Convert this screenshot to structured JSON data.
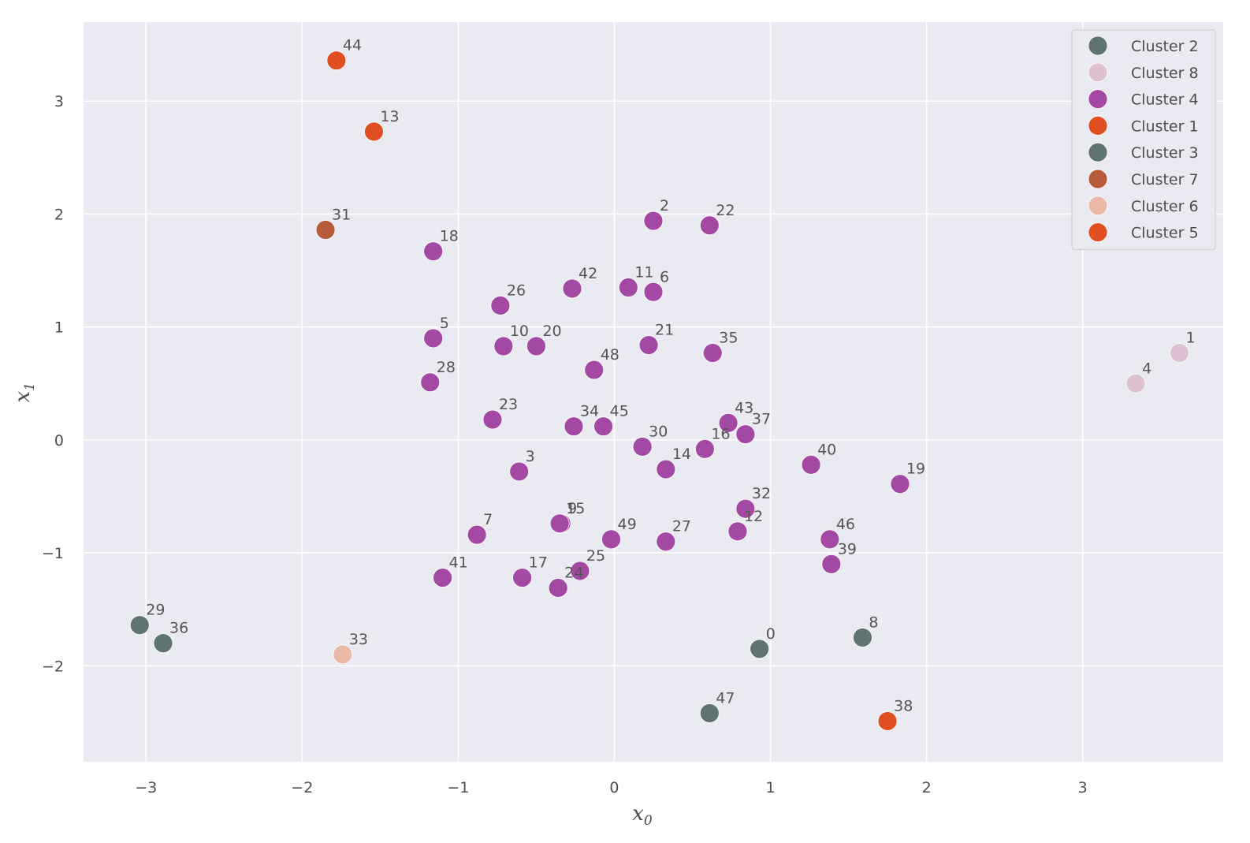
{
  "chart_data": {
    "type": "scatter",
    "title": "",
    "xlabel": "x",
    "xlabel_sub": "0",
    "ylabel": "x",
    "ylabel_sub": "1",
    "xlim": [
      -3.4,
      3.9
    ],
    "ylim": [
      -2.85,
      3.7
    ],
    "xticks": [
      -3,
      -2,
      -1,
      0,
      1,
      2,
      3
    ],
    "yticks": [
      -2,
      -1,
      0,
      1,
      2,
      3
    ],
    "xtick_labels": [
      "−3",
      "−2",
      "−1",
      "0",
      "1",
      "2",
      "3"
    ],
    "ytick_labels": [
      "−2",
      "−1",
      "0",
      "1",
      "2",
      "3"
    ],
    "grid": true,
    "background": "#eaeaf2",
    "legend_position": "top-right",
    "series": [
      {
        "name": "Cluster 2",
        "color": "#5f7471",
        "points": [
          {
            "id": "0",
            "x": 0.93,
            "y": -1.85
          },
          {
            "id": "8",
            "x": 1.59,
            "y": -1.75
          },
          {
            "id": "47",
            "x": 0.61,
            "y": -2.42
          }
        ]
      },
      {
        "name": "Cluster 8",
        "color": "#dcc1d2",
        "points": [
          {
            "id": "1",
            "x": 3.62,
            "y": 0.77
          },
          {
            "id": "4",
            "x": 3.34,
            "y": 0.5
          }
        ]
      },
      {
        "name": "Cluster 4",
        "color": "#a349a4",
        "points": [
          {
            "id": "2",
            "x": 0.25,
            "y": 1.94
          },
          {
            "id": "22",
            "x": 0.61,
            "y": 1.9
          },
          {
            "id": "18",
            "x": -1.16,
            "y": 1.67
          },
          {
            "id": "42",
            "x": -0.27,
            "y": 1.34
          },
          {
            "id": "11",
            "x": 0.09,
            "y": 1.35
          },
          {
            "id": "6",
            "x": 0.25,
            "y": 1.31
          },
          {
            "id": "26",
            "x": -0.73,
            "y": 1.19
          },
          {
            "id": "5",
            "x": -1.16,
            "y": 0.9
          },
          {
            "id": "10",
            "x": -0.71,
            "y": 0.83
          },
          {
            "id": "20",
            "x": -0.5,
            "y": 0.83
          },
          {
            "id": "21",
            "x": 0.22,
            "y": 0.84
          },
          {
            "id": "35",
            "x": 0.63,
            "y": 0.77
          },
          {
            "id": "48",
            "x": -0.13,
            "y": 0.62
          },
          {
            "id": "28",
            "x": -1.18,
            "y": 0.51
          },
          {
            "id": "23",
            "x": -0.78,
            "y": 0.18
          },
          {
            "id": "34",
            "x": -0.26,
            "y": 0.12
          },
          {
            "id": "45",
            "x": -0.07,
            "y": 0.12
          },
          {
            "id": "43",
            "x": 0.73,
            "y": 0.15
          },
          {
            "id": "37",
            "x": 0.84,
            "y": 0.05
          },
          {
            "id": "30",
            "x": 0.18,
            "y": -0.06
          },
          {
            "id": "16",
            "x": 0.58,
            "y": -0.08
          },
          {
            "id": "14",
            "x": 0.33,
            "y": -0.26
          },
          {
            "id": "3",
            "x": -0.61,
            "y": -0.28
          },
          {
            "id": "40",
            "x": 1.26,
            "y": -0.22
          },
          {
            "id": "19",
            "x": 1.83,
            "y": -0.39
          },
          {
            "id": "32",
            "x": 0.84,
            "y": -0.61
          },
          {
            "id": "12",
            "x": 0.79,
            "y": -0.81
          },
          {
            "id": "9",
            "x": -0.34,
            "y": -0.74
          },
          {
            "id": "15",
            "x": -0.35,
            "y": -0.74
          },
          {
            "id": "7",
            "x": -0.88,
            "y": -0.84
          },
          {
            "id": "49",
            "x": -0.02,
            "y": -0.88
          },
          {
            "id": "27",
            "x": 0.33,
            "y": -0.9
          },
          {
            "id": "46",
            "x": 1.38,
            "y": -0.88
          },
          {
            "id": "39",
            "x": 1.39,
            "y": -1.1
          },
          {
            "id": "41",
            "x": -1.1,
            "y": -1.22
          },
          {
            "id": "17",
            "x": -0.59,
            "y": -1.22
          },
          {
            "id": "25",
            "x": -0.22,
            "y": -1.16
          },
          {
            "id": "24",
            "x": -0.36,
            "y": -1.31
          }
        ]
      },
      {
        "name": "Cluster 1",
        "color": "#e04f22",
        "points": [
          {
            "id": "44",
            "x": -1.78,
            "y": 3.36
          },
          {
            "id": "13",
            "x": -1.54,
            "y": 2.73
          }
        ]
      },
      {
        "name": "Cluster 3",
        "color": "#5f7471",
        "points": [
          {
            "id": "29",
            "x": -3.04,
            "y": -1.64
          },
          {
            "id": "36",
            "x": -2.89,
            "y": -1.8
          }
        ]
      },
      {
        "name": "Cluster 7",
        "color": "#b85a3c",
        "points": [
          {
            "id": "31",
            "x": -1.85,
            "y": 1.86
          }
        ]
      },
      {
        "name": "Cluster 6",
        "color": "#ebb9a8",
        "points": [
          {
            "id": "33",
            "x": -1.74,
            "y": -1.9
          }
        ]
      },
      {
        "name": "Cluster 5",
        "color": "#e04f22",
        "points": [
          {
            "id": "38",
            "x": 1.75,
            "y": -2.49
          }
        ]
      }
    ]
  }
}
